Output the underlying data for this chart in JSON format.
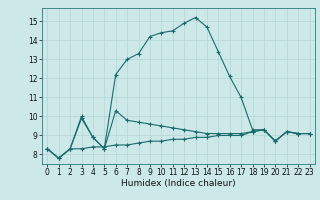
{
  "title": "",
  "xlabel": "Humidex (Indice chaleur)",
  "background_color": "#cce8e8",
  "grid_color": "#b8d8d8",
  "line_color": "#1a6b6b",
  "xlim": [
    -0.5,
    23.5
  ],
  "ylim": [
    7.5,
    15.7
  ],
  "xticks": [
    0,
    1,
    2,
    3,
    4,
    5,
    6,
    7,
    8,
    9,
    10,
    11,
    12,
    13,
    14,
    15,
    16,
    17,
    18,
    19,
    20,
    21,
    22,
    23
  ],
  "yticks": [
    8,
    9,
    10,
    11,
    12,
    13,
    14,
    15
  ],
  "line1_y": [
    8.3,
    7.8,
    8.3,
    9.9,
    8.9,
    8.3,
    12.2,
    13.0,
    13.3,
    14.2,
    14.4,
    14.5,
    14.9,
    15.2,
    14.7,
    13.4,
    12.1,
    11.0,
    9.3,
    9.3,
    8.7,
    9.2,
    9.1,
    9.1
  ],
  "line2_y": [
    8.3,
    7.8,
    8.3,
    10.0,
    8.9,
    8.3,
    10.3,
    9.8,
    9.7,
    9.6,
    9.5,
    9.4,
    9.3,
    9.2,
    9.1,
    9.1,
    9.1,
    9.1,
    9.2,
    9.3,
    8.7,
    9.2,
    9.1,
    9.1
  ],
  "line3_y": [
    8.3,
    7.8,
    8.3,
    8.3,
    8.4,
    8.4,
    8.5,
    8.5,
    8.6,
    8.7,
    8.7,
    8.8,
    8.8,
    8.9,
    8.9,
    9.0,
    9.0,
    9.0,
    9.2,
    9.3,
    8.7,
    9.2,
    9.1,
    9.1
  ],
  "tick_fontsize": 5.5,
  "xlabel_fontsize": 6.5
}
